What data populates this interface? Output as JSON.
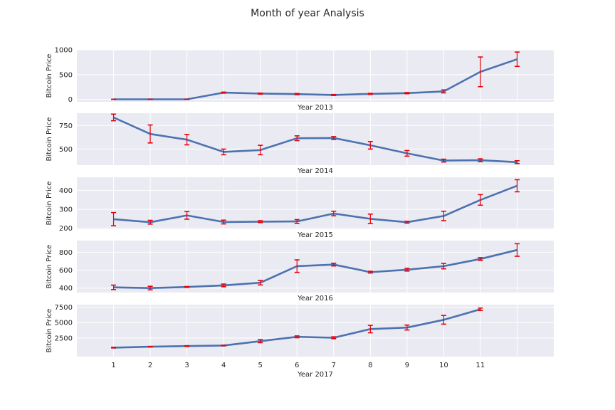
{
  "figure": {
    "title": "Month of year Analysis",
    "background": "#ffffff",
    "panel_background": "#eaeaf2",
    "grid_color": "#ffffff",
    "line_color": "#4c72b0",
    "error_color": "#e8000b"
  },
  "chart_data": [
    {
      "type": "line",
      "title": "",
      "xlabel": "Year 2013",
      "ylabel": "Bitcoin Price",
      "xlim": [
        0,
        13
      ],
      "ylim": [
        -50,
        1000
      ],
      "yticks": [
        0,
        500,
        1000
      ],
      "xticks": [],
      "x": [
        1,
        2,
        3,
        4,
        5,
        6,
        7,
        8,
        9,
        10,
        11,
        12
      ],
      "y": [
        0,
        0,
        0,
        135,
        115,
        105,
        88,
        110,
        125,
        160,
        555,
        810
      ],
      "err": [
        0,
        0,
        0,
        10,
        10,
        12,
        10,
        10,
        12,
        30,
        300,
        145
      ],
      "grid": true
    },
    {
      "type": "line",
      "title": "",
      "xlabel": "Year 2014",
      "ylabel": "Bitcoin Price",
      "xlim": [
        0,
        13
      ],
      "ylim": [
        330,
        880
      ],
      "yticks": [
        500,
        750
      ],
      "xticks": [],
      "x": [
        1,
        2,
        3,
        4,
        5,
        6,
        7,
        8,
        9,
        10,
        11,
        12
      ],
      "y": [
        835,
        660,
        600,
        470,
        490,
        615,
        617,
        540,
        455,
        378,
        382,
        362
      ],
      "err": [
        35,
        95,
        55,
        30,
        50,
        25,
        15,
        40,
        30,
        15,
        15,
        15
      ],
      "grid": true
    },
    {
      "type": "line",
      "title": "",
      "xlabel": "Year 2015",
      "ylabel": "Bitcoin Price",
      "xlim": [
        0,
        13
      ],
      "ylim": [
        195,
        470
      ],
      "yticks": [
        200,
        300,
        400
      ],
      "xticks": [],
      "x": [
        1,
        2,
        3,
        4,
        5,
        6,
        7,
        8,
        9,
        10,
        11,
        12
      ],
      "y": [
        248,
        232,
        268,
        233,
        235,
        236,
        278,
        250,
        232,
        265,
        350,
        425
      ],
      "err": [
        35,
        10,
        20,
        10,
        5,
        10,
        12,
        25,
        5,
        25,
        28,
        32
      ],
      "grid": true
    },
    {
      "type": "line",
      "title": "",
      "xlabel": "Year 2016",
      "ylabel": "Bitcoin Price",
      "xlim": [
        0,
        13
      ],
      "ylim": [
        350,
        930
      ],
      "yticks": [
        400,
        600,
        800
      ],
      "xticks": [],
      "x": [
        1,
        2,
        3,
        4,
        5,
        6,
        7,
        8,
        9,
        10,
        11,
        12
      ],
      "y": [
        408,
        400,
        412,
        430,
        460,
        645,
        662,
        578,
        605,
        645,
        725,
        825
      ],
      "err": [
        25,
        20,
        5,
        15,
        25,
        70,
        15,
        10,
        15,
        30,
        15,
        70
      ],
      "grid": true
    },
    {
      "type": "line",
      "title": "",
      "xlabel": "Year 2017",
      "ylabel": "Bitcoin Price",
      "xlim": [
        0,
        13
      ],
      "ylim": [
        -500,
        7900
      ],
      "yticks": [
        2500,
        5000,
        7500
      ],
      "xticks": [
        "1",
        "2",
        "3",
        "4",
        "5",
        "6",
        "7",
        "8",
        "9",
        "10",
        "11"
      ],
      "x": [
        1,
        2,
        3,
        4,
        5,
        6,
        7,
        8,
        9,
        10,
        11
      ],
      "y": [
        950,
        1100,
        1200,
        1290,
        2000,
        2700,
        2550,
        3950,
        4200,
        5450,
        7150
      ],
      "err": [
        50,
        30,
        60,
        50,
        250,
        150,
        150,
        600,
        400,
        700,
        200
      ],
      "grid": true
    }
  ]
}
